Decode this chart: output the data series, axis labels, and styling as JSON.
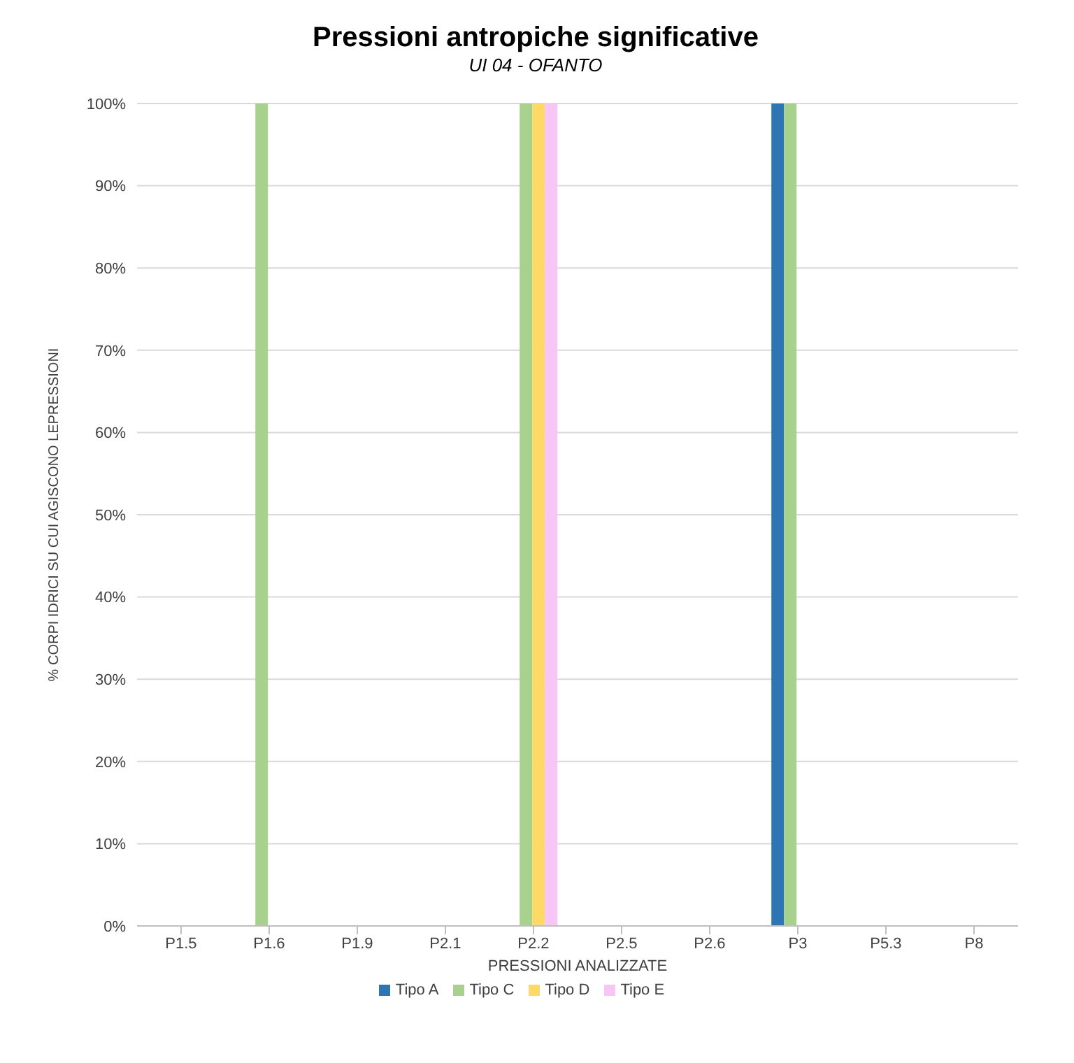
{
  "chart_data": {
    "type": "bar",
    "title": "Pressioni antropiche significative",
    "subtitle": "UI 04 - OFANTO",
    "xlabel": "PRESSIONI ANALIZZATE",
    "ylabel": "% CORPI IDRICI SU CUI AGISCONO LEPRESSIONI",
    "categories": [
      "P1.5",
      "P1.6",
      "P1.9",
      "P2.1",
      "P2.2",
      "P2.5",
      "P2.6",
      "P3",
      "P5.3",
      "P8"
    ],
    "series": [
      {
        "name": "Tipo A",
        "color": "#2e75b6",
        "values": [
          0,
          0,
          0,
          0,
          0,
          0,
          0,
          100,
          0,
          0
        ]
      },
      {
        "name": "Tipo C",
        "color": "#a9d18e",
        "values": [
          0,
          100,
          0,
          0,
          100,
          0,
          0,
          100,
          0,
          0
        ]
      },
      {
        "name": "Tipo D",
        "color": "#ffd966",
        "values": [
          0,
          0,
          0,
          0,
          100,
          0,
          0,
          0,
          0,
          0
        ]
      },
      {
        "name": "Tipo E",
        "color": "#f7c6f7",
        "values": [
          0,
          0,
          0,
          0,
          100,
          0,
          0,
          0,
          0,
          0
        ]
      }
    ],
    "ylim": [
      0,
      100
    ],
    "yticks": [
      {
        "value": 0,
        "label": "0%"
      },
      {
        "value": 10,
        "label": "10%"
      },
      {
        "value": 20,
        "label": "20%"
      },
      {
        "value": 30,
        "label": "30%"
      },
      {
        "value": 40,
        "label": "40%"
      },
      {
        "value": 50,
        "label": "50%"
      },
      {
        "value": 60,
        "label": "60%"
      },
      {
        "value": 70,
        "label": "70%"
      },
      {
        "value": 80,
        "label": "80%"
      },
      {
        "value": 90,
        "label": "90%"
      },
      {
        "value": 100,
        "label": "100%"
      }
    ],
    "grid": "y",
    "legend": "bottom"
  }
}
